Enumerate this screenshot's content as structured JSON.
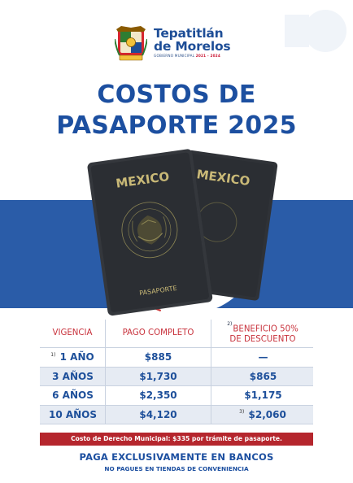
{
  "header": {
    "municipio_line1": "Tepatitlán",
    "municipio_line2": "de Morelos",
    "gobierno": "GOBIERNO MUNICIPAL",
    "periodo": "2021 - 2024"
  },
  "title": {
    "line1": "COSTOS DE",
    "line2": "PASAPORTE 2025"
  },
  "passport": {
    "front_country": "MEXICO",
    "back_country": "MEXICO",
    "seal_text": "ESTADOS UNIDOS MEXICANOS",
    "front_label": "PASAPORTE"
  },
  "table": {
    "headers": {
      "vigencia": "VIGENCIA",
      "pago_completo": "PAGO COMPLETO",
      "beneficio_note": "2)",
      "beneficio_line1": "BENEFICIO 50%",
      "beneficio_line2": "DE DESCUENTO"
    },
    "rows": [
      {
        "note": "1)",
        "vigencia": "1 AÑO",
        "pago": "$885",
        "beneficio_note": "",
        "beneficio": "—"
      },
      {
        "note": "",
        "vigencia": "3 AÑOS",
        "pago": "$1,730",
        "beneficio_note": "",
        "beneficio": "$865"
      },
      {
        "note": "",
        "vigencia": "6 AÑOS",
        "pago": "$2,350",
        "beneficio_note": "",
        "beneficio": "$1,175"
      },
      {
        "note": "",
        "vigencia": "10 AÑOS",
        "pago": "$4,120",
        "beneficio_note": "3)",
        "beneficio": "$2,060"
      }
    ]
  },
  "footer": {
    "derecho": "Costo de Derecho Municipal: $335 por trámite de pasaporte.",
    "paga": "PAGA EXCLUSIVAMENTE EN BANCOS",
    "no_pague": "NO PAGUES EN TIENDAS DE CONVENIENCIA"
  },
  "colors": {
    "primary_blue": "#1c4fa0",
    "band_blue": "#2a5ca8",
    "accent_red": "#b5262d",
    "header_red": "#c8323c",
    "passport_dark": "#2b2e33",
    "passport_gold": "#c9b977"
  }
}
